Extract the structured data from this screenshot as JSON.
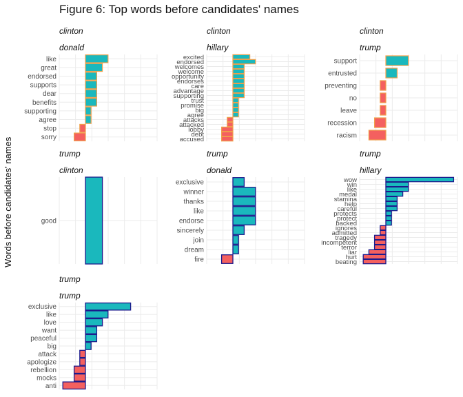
{
  "title": "Figure 6: Top words before candidates' names",
  "ylabel": "Words before candidates' names",
  "colors": {
    "positive": "#1ab8bd",
    "negative": "#f4605f",
    "outline_orange": "#f0a04b",
    "outline_navy": "#1c1a8c",
    "grid": "#ebebeb"
  },
  "chart_data": [
    {
      "type": "bar",
      "orientation": "horizontal",
      "strip_top": "clinton",
      "strip_bottom": "donald",
      "outline": "orange",
      "categories": [
        "like",
        "great",
        "endorsed",
        "supports",
        "dear",
        "benefits",
        "supporting",
        "agree",
        "stop",
        "sorry"
      ],
      "values": [
        4,
        3,
        2,
        2,
        2,
        2,
        1,
        1,
        -1,
        -2
      ]
    },
    {
      "type": "bar",
      "orientation": "horizontal",
      "strip_top": "clinton",
      "strip_bottom": "hillary",
      "outline": "orange",
      "categories": [
        "excited",
        "endorsed",
        "welcomes",
        "welcome",
        "opportunity",
        "endorses",
        "care",
        "advantage",
        "supporting",
        "trust",
        "promise",
        "big",
        "agree",
        "attacks",
        "attacked",
        "lobby",
        "debt",
        "accused"
      ],
      "values": [
        3,
        4,
        2,
        2,
        2,
        2,
        2,
        2,
        2,
        1,
        1,
        1,
        1,
        -1,
        -1,
        -2,
        -2,
        -2
      ]
    },
    {
      "type": "bar",
      "orientation": "horizontal",
      "strip_top": "clinton",
      "strip_bottom": "trump",
      "outline": "orange",
      "categories": [
        "support",
        "entrusted",
        "preventing",
        "no",
        "leave",
        "recession",
        "racism"
      ],
      "values": [
        4,
        2,
        -1,
        -1,
        -1,
        -2,
        -3
      ]
    },
    {
      "type": "bar",
      "orientation": "horizontal",
      "strip_top": "trump",
      "strip_bottom": "clinton",
      "outline": "navy",
      "categories": [
        "good"
      ],
      "values": [
        3
      ]
    },
    {
      "type": "bar",
      "orientation": "horizontal",
      "strip_top": "trump",
      "strip_bottom": "donald",
      "outline": "navy",
      "categories": [
        "exclusive",
        "winner",
        "thanks",
        "like",
        "endorse",
        "sincerely",
        "join",
        "dream",
        "fire"
      ],
      "values": [
        2,
        4,
        4,
        4,
        4,
        2,
        1,
        1,
        -2
      ]
    },
    {
      "type": "bar",
      "orientation": "horizontal",
      "strip_top": "trump",
      "strip_bottom": "hillary",
      "outline": "navy",
      "categories": [
        "wow",
        "win",
        "like",
        "medal",
        "stamina",
        "help",
        "careful",
        "protects",
        "protect",
        "backed",
        "ignores",
        "admitted",
        "tragedy",
        "incompetent",
        "terror",
        "liar",
        "hurt",
        "beating"
      ],
      "values": [
        12,
        4,
        4,
        3,
        2,
        2,
        2,
        1,
        1,
        1,
        -1,
        -1,
        -2,
        -2,
        -2,
        -3,
        -4,
        -4
      ]
    },
    {
      "type": "bar",
      "orientation": "horizontal",
      "strip_top": "trump",
      "strip_bottom": "trump",
      "outline": "navy",
      "categories": [
        "exclusive",
        "like",
        "love",
        "want",
        "peaceful",
        "big",
        "attack",
        "apologize",
        "rebellion",
        "mocks",
        "anti"
      ],
      "values": [
        8,
        4,
        3,
        2,
        2,
        1,
        -1,
        -1,
        -2,
        -2,
        -4
      ]
    }
  ]
}
